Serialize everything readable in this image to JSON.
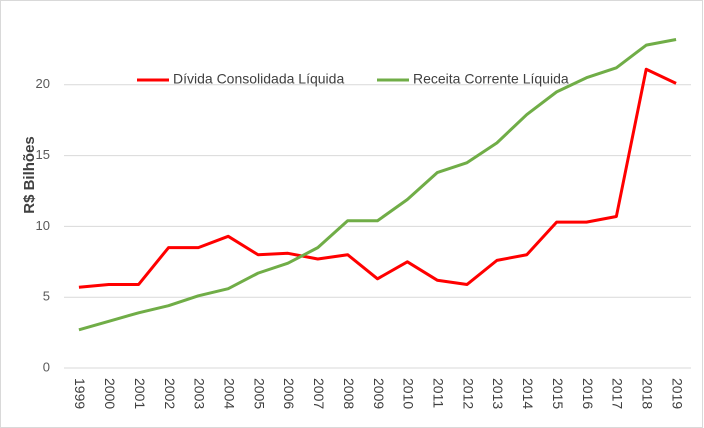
{
  "chart_data": {
    "type": "line",
    "y_label": "R$ Bilhões",
    "categories": [
      "1999",
      "2000",
      "2001",
      "2002",
      "2003",
      "2004",
      "2005",
      "2006",
      "2007",
      "2008",
      "2009",
      "2010",
      "2011",
      "2012",
      "2013",
      "2014",
      "2015",
      "2016",
      "2017",
      "2018",
      "2019"
    ],
    "series": [
      {
        "name": "Dívida Consolidada Líquida",
        "color": "#ff0000",
        "values": [
          5.7,
          5.9,
          5.9,
          8.5,
          8.5,
          9.3,
          8.0,
          8.1,
          7.7,
          8.0,
          6.3,
          7.5,
          6.2,
          5.9,
          7.6,
          8.0,
          10.3,
          10.3,
          10.7,
          21.1,
          20.1
        ]
      },
      {
        "name": "Receita Corrente Líquida",
        "color": "#70ad47",
        "values": [
          2.7,
          3.3,
          3.9,
          4.4,
          5.1,
          5.6,
          6.7,
          7.4,
          8.5,
          10.4,
          10.4,
          11.9,
          13.8,
          14.5,
          15.9,
          17.9,
          19.5,
          20.5,
          21.2,
          22.8,
          23.2
        ]
      }
    ],
    "ylim": [
      0,
      25
    ],
    "yticks": [
      0,
      5,
      10,
      15,
      20
    ],
    "grid": true,
    "legend": "top"
  }
}
